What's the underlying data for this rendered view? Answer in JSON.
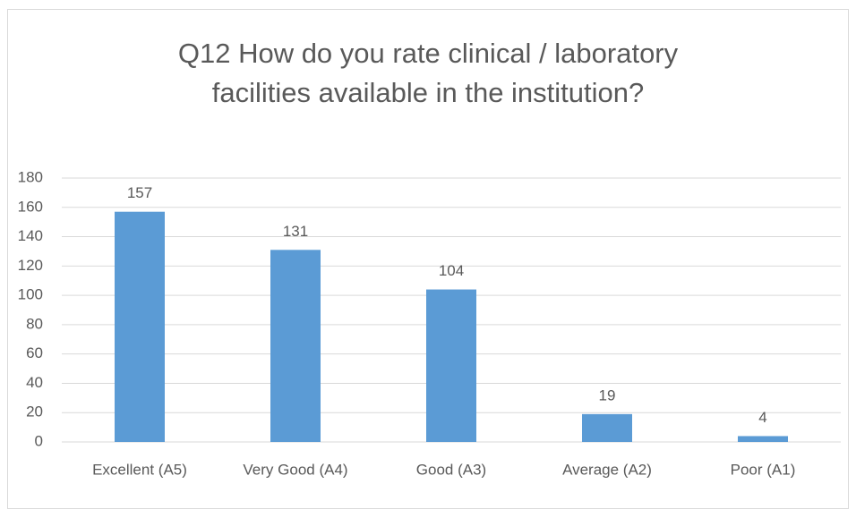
{
  "chart_data": {
    "type": "bar",
    "title": "Q12 How do you rate clinical / laboratory facilities available in the institution?",
    "categories": [
      "Excellent (A5)",
      "Very Good (A4)",
      "Good (A3)",
      "Average (A2)",
      "Poor (A1)"
    ],
    "values": [
      157,
      131,
      104,
      19,
      4
    ],
    "color": "#5b9bd5",
    "ylim": [
      0,
      180
    ],
    "yticks": [
      0,
      20,
      40,
      60,
      80,
      100,
      120,
      140,
      160,
      180
    ],
    "grid": true
  }
}
